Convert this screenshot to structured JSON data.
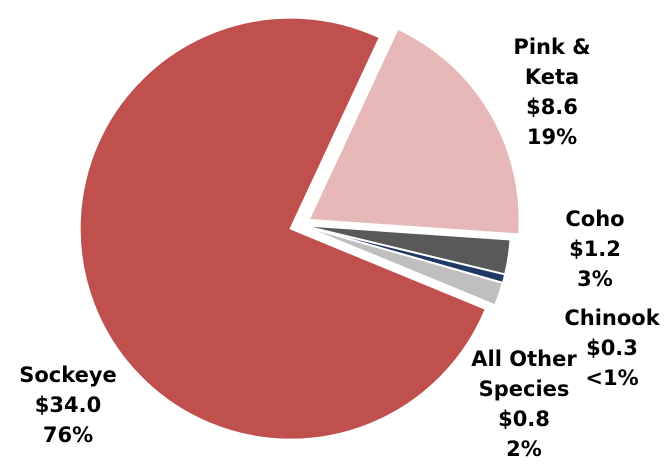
{
  "chart_data": {
    "type": "pie",
    "title": "",
    "legend": "none",
    "slices": [
      {
        "name": "Pink & Keta",
        "value": 8.6,
        "value_label": "$8.6",
        "percent_label": "19%",
        "color": "#e6b8b7",
        "exploded": true
      },
      {
        "name": "Coho",
        "value": 1.2,
        "value_label": "$1.2",
        "percent_label": "3%",
        "color": "#595959",
        "exploded": false
      },
      {
        "name": "Chinook",
        "value": 0.3,
        "value_label": "$0.3",
        "percent_label": "<1%",
        "color": "#1f3864",
        "exploded": false
      },
      {
        "name": "All Other Species",
        "value": 0.8,
        "value_label": "$0.8",
        "percent_label": "2%",
        "color": "#bfbfbf",
        "exploded": false
      },
      {
        "name": "Sockeye",
        "value": 34.0,
        "value_label": "$34.0",
        "percent_label": "76%",
        "color": "#c0504d",
        "exploded": true
      }
    ]
  }
}
